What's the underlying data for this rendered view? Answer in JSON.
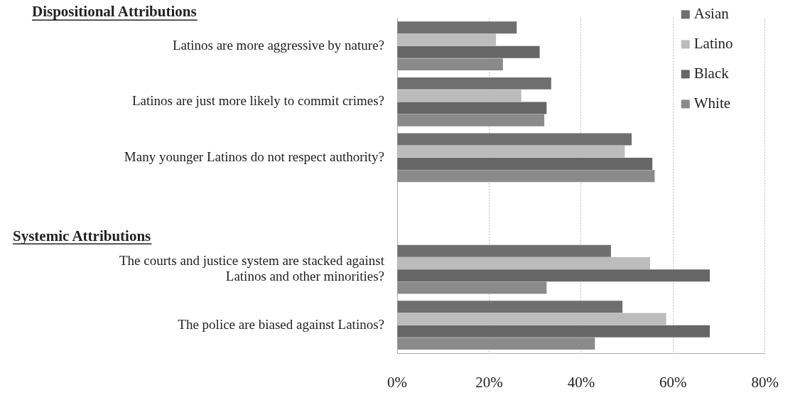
{
  "chart_data": {
    "type": "bar",
    "orientation": "horizontal",
    "categories": [
      "Latinos are more aggressive by nature?",
      "Latinos are just more likely to commit crimes?",
      "Many younger Latinos do not respect authority?",
      null,
      "The courts and justice system are stacked against Latinos and other minorities?",
      "The police are biased against Latinos?"
    ],
    "series": [
      {
        "name": "Asian",
        "color": "#6f6f6f",
        "values": [
          26,
          33.5,
          51,
          null,
          46.5,
          49
        ]
      },
      {
        "name": "Latino",
        "color": "#bcbcbc",
        "values": [
          21.5,
          27,
          49.5,
          null,
          55,
          58.5
        ]
      },
      {
        "name": "Black",
        "color": "#666666",
        "values": [
          31,
          32.5,
          55.5,
          null,
          68,
          68
        ]
      },
      {
        "name": "White",
        "color": "#8a8a8a",
        "values": [
          23,
          32,
          56,
          null,
          32.5,
          43
        ]
      }
    ],
    "xlim": [
      0,
      80
    ],
    "xticks": [
      {
        "value": 0,
        "label": "0%"
      },
      {
        "value": 20,
        "label": "20%"
      },
      {
        "value": 40,
        "label": "40%"
      },
      {
        "value": 60,
        "label": "60%"
      },
      {
        "value": 80,
        "label": "80%"
      }
    ],
    "grid": "x",
    "legend": "top right",
    "annotations": [
      "Dispositional Attributions",
      "Systemic Attributions"
    ]
  }
}
